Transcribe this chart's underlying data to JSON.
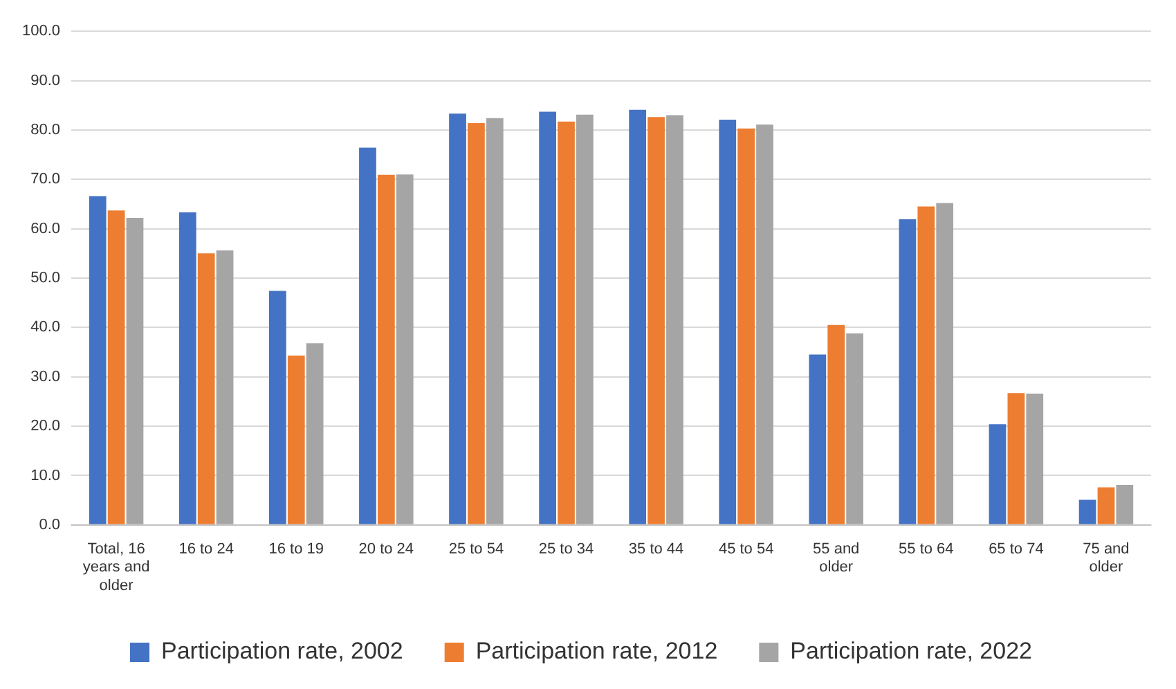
{
  "chart_data": {
    "type": "bar",
    "categories": [
      "Total, 16 years and older",
      "16 to 24",
      "16 to 19",
      "20 to 24",
      "25 to 54",
      "25 to 34",
      "35 to 44",
      "45 to 54",
      "55 and older",
      "55 to 64",
      "65 to 74",
      "75 and older"
    ],
    "series": [
      {
        "name": "Participation rate, 2002",
        "color": "#4472c4",
        "values": [
          66.6,
          63.3,
          47.4,
          76.4,
          83.3,
          83.7,
          84.1,
          82.1,
          34.5,
          61.9,
          20.4,
          5.1
        ]
      },
      {
        "name": "Participation rate, 2012",
        "color": "#ed7d31",
        "values": [
          63.7,
          55.0,
          34.3,
          70.9,
          81.4,
          81.7,
          82.6,
          80.3,
          40.5,
          64.5,
          26.7,
          7.6
        ]
      },
      {
        "name": "Participation rate, 2022",
        "color": "#a5a5a5",
        "values": [
          62.2,
          55.6,
          36.8,
          71.0,
          82.4,
          83.1,
          83.0,
          81.1,
          38.8,
          65.2,
          26.6,
          8.1
        ]
      }
    ],
    "ylim": [
      0,
      100
    ],
    "yticks": [
      {
        "value": 0,
        "label": "0.0"
      },
      {
        "value": 10,
        "label": "10.0"
      },
      {
        "value": 20,
        "label": "20.0"
      },
      {
        "value": 30,
        "label": "30.0"
      },
      {
        "value": 40,
        "label": "40.0"
      },
      {
        "value": 50,
        "label": "50.0"
      },
      {
        "value": 60,
        "label": "60.0"
      },
      {
        "value": 70,
        "label": "70.0"
      },
      {
        "value": 80,
        "label": "80.0"
      },
      {
        "value": 90,
        "label": "90.0"
      },
      {
        "value": 100,
        "label": "100.0"
      }
    ],
    "grid": "y",
    "legend": "bottom"
  }
}
